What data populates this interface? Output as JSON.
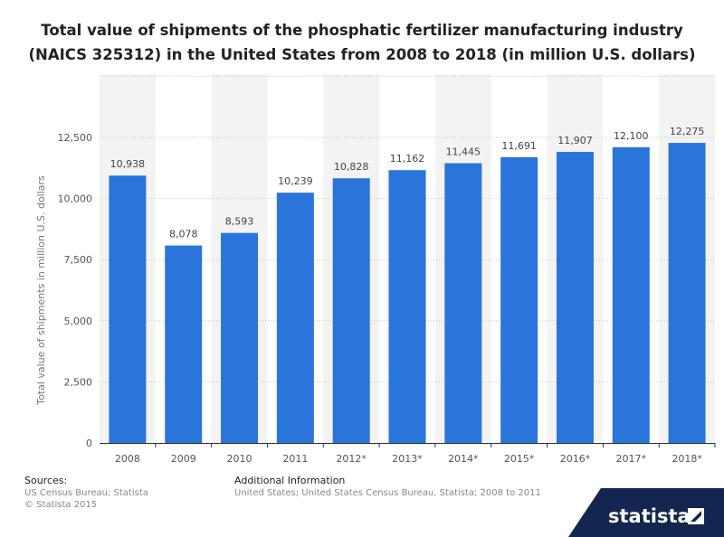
{
  "title_line1": "Total value of shipments of the phosphatic fertilizer manufacturing industry",
  "title_line2": "(NAICS 325312) in the United States from 2008 to 2018 (in million U.S. dollars)",
  "chart_data": {
    "type": "bar",
    "title": "Total value of shipments of the phosphatic fertilizer manufacturing industry (NAICS 325312) in the United States from 2008 to 2018 (in million U.S. dollars)",
    "xlabel": "",
    "ylabel": "Total value of shipments in million U.S. dollars",
    "categories": [
      "2008",
      "2009",
      "2010",
      "2011",
      "2012*",
      "2013*",
      "2014*",
      "2015*",
      "2016*",
      "2017*",
      "2018*"
    ],
    "values": [
      10938,
      8078,
      8593,
      10239,
      10828,
      11162,
      11445,
      11691,
      11907,
      12100,
      12275
    ],
    "value_labels": [
      "10,938",
      "8,078",
      "8,593",
      "10,239",
      "10,828",
      "11,162",
      "11,445",
      "11,691",
      "11,907",
      "12,100",
      "12,275"
    ],
    "yticks": [
      0,
      2500,
      5000,
      7500,
      10000,
      12500
    ],
    "ytick_labels": [
      "0",
      "2,500",
      "5,000",
      "7,500",
      "10,000",
      "12,500"
    ],
    "ylim": [
      0,
      15000
    ],
    "grid": true,
    "bar_color": "#2a75d9"
  },
  "footer": {
    "sources_head": "Sources:",
    "sources_line1": "US Census Bureau; Statista",
    "sources_line2": "© Statista 2015",
    "additional_head": "Additional Information",
    "additional_line1": "United States; United States Census Bureau, Statista; 2008 to 2011"
  },
  "logo_text": "statista",
  "colors": {
    "logo_bg": "#13264f",
    "text": "#222222",
    "muted": "#888888"
  }
}
